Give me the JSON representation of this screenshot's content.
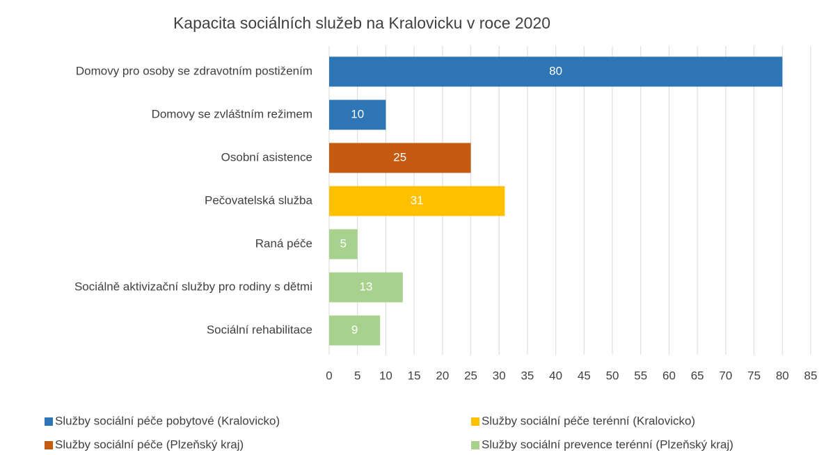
{
  "chart_data": {
    "type": "hbar",
    "title": "Kapacita sociálních služeb na Kralovicku v roce 2020",
    "categories": [
      "Domovy pro osoby se zdravotním postižením",
      "Domovy se zvláštním režimem",
      "Osobní asistence",
      "Pečovatelská služba",
      "Raná péče",
      "Sociálně aktivizační služby pro rodiny s dětmi",
      "Sociální rehabilitace"
    ],
    "series": [
      {
        "name": "Služby sociální péče pobytové (Kralovicko)",
        "color": "#2e75b6",
        "values": [
          80,
          10,
          null,
          null,
          null,
          null,
          null
        ]
      },
      {
        "name": "Služby sociální péče (Plzeňský kraj)",
        "color": "#c55a11",
        "values": [
          null,
          null,
          25,
          null,
          null,
          null,
          null
        ]
      },
      {
        "name": "Služby sociální péče terénní (Kralovicko)",
        "color": "#ffc000",
        "values": [
          null,
          null,
          null,
          31,
          null,
          null,
          null
        ]
      },
      {
        "name": "Služby sociální prevence terénní (Plzeňský kraj)",
        "color": "#a9d18e",
        "values": [
          null,
          null,
          null,
          null,
          5,
          13,
          9
        ]
      }
    ],
    "xlim": [
      0,
      85
    ],
    "xticks": [
      0,
      5,
      10,
      15,
      20,
      25,
      30,
      35,
      40,
      45,
      50,
      55,
      60,
      65,
      70,
      75,
      80,
      85
    ],
    "grid": true,
    "legend": "bottom"
  }
}
